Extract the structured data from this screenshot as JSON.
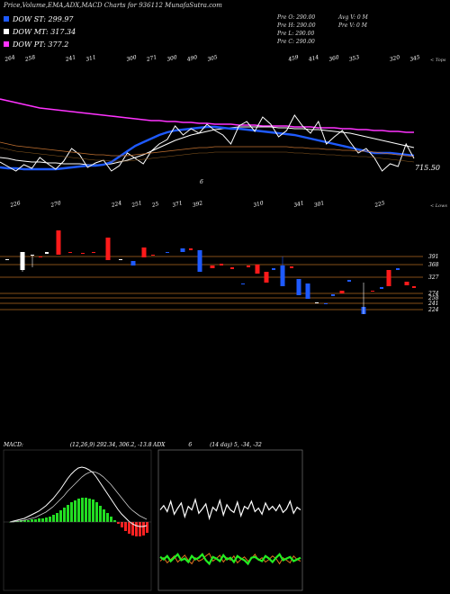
{
  "title": "Price,Volume,EMA,ADX,MACD Charts for 936112  MunafaSutra.com",
  "legend": [
    {
      "label": "DOW ST: 299.97",
      "color": "#1e5aff"
    },
    {
      "label": "DOW MT: 317.34",
      "color": "#ffffff"
    },
    {
      "label": "DOW PT: 377.2",
      "color": "#ff33ff"
    }
  ],
  "info": {
    "pre_o": "Pre  O: 290.00",
    "pre_h": "Pre  H: 290.00",
    "pre_l": "Pre  L: 290.00",
    "pre_c": "Pre  C: 290.00",
    "avg_v": "Avg V: 0  M",
    "pre_v": "Pre  V: 0  M"
  },
  "chart_data": [
    {
      "type": "line",
      "panel": "price",
      "top_labels": [
        "264",
        "258",
        "",
        "241",
        "311",
        "",
        "300",
        "271",
        "300",
        "490",
        "305",
        "",
        "",
        "",
        "459",
        "414",
        "360",
        "353",
        "",
        "320",
        "345"
      ],
      "bottom_labels": [
        "226",
        "",
        "270",
        "",
        "",
        "224",
        "251",
        "25",
        "371",
        "392",
        "",
        "",
        "310",
        "",
        "341",
        "301",
        "",
        "",
        "225",
        ""
      ],
      "right_top_label": "< Tops",
      "right_bottom_label": "< Lows",
      "last_price_label": "715.50",
      "marker_label": "6",
      "series": [
        {
          "name": "DOW PT",
          "color": "#ff33ff",
          "values": [
            110,
            112,
            114,
            116,
            118,
            120,
            121,
            122,
            123,
            124,
            125,
            126,
            127,
            128,
            129,
            130,
            131,
            132,
            133,
            134,
            134,
            135,
            135,
            136,
            136,
            137,
            137,
            138,
            138,
            138,
            139,
            139,
            139,
            140,
            140,
            140,
            140,
            141,
            141,
            141,
            142,
            142,
            142,
            143,
            143,
            144,
            144,
            145,
            145,
            146,
            146,
            147,
            147
          ]
        },
        {
          "name": "DOW MT",
          "color": "#ffffff",
          "values": [
            175,
            176,
            178,
            179,
            180,
            180,
            181,
            181,
            182,
            182,
            182,
            183,
            183,
            183,
            182,
            180,
            178,
            175,
            172,
            168,
            164,
            160,
            156,
            153,
            150,
            148,
            146,
            144,
            143,
            142,
            141,
            141,
            141,
            141,
            141,
            142,
            142,
            143,
            143,
            144,
            144,
            145,
            146,
            147,
            148,
            150,
            152,
            154,
            156,
            158,
            160,
            162,
            164
          ]
        },
        {
          "name": "DOW ST",
          "color": "#1e5aff",
          "values": [
            186,
            187,
            187,
            188,
            188,
            188,
            188,
            188,
            187,
            186,
            185,
            184,
            184,
            183,
            180,
            174,
            168,
            162,
            158,
            154,
            150,
            147,
            145,
            144,
            143,
            142,
            141,
            141,
            142,
            143,
            143,
            144,
            145,
            146,
            147,
            148,
            149,
            150,
            152,
            154,
            156,
            158,
            160,
            162,
            164,
            166,
            168,
            170,
            170,
            170,
            171,
            172,
            173
          ]
        },
        {
          "name": "Price",
          "color": "#ffffff",
          "values": [
            180,
            185,
            190,
            183,
            187,
            175,
            182,
            188,
            179,
            165,
            172,
            186,
            181,
            178,
            190,
            184,
            170,
            176,
            182,
            168,
            160,
            155,
            140,
            150,
            143,
            148,
            138,
            145,
            150,
            160,
            140,
            135,
            146,
            130,
            138,
            152,
            145,
            128,
            140,
            148,
            135,
            160,
            152,
            145,
            158,
            170,
            165,
            175,
            190,
            182,
            185,
            160,
            176
          ]
        },
        {
          "name": "Avg",
          "color": "#c07030",
          "values": [
            158,
            160,
            162,
            163,
            164,
            165,
            166,
            167,
            168,
            169,
            170,
            171,
            172,
            172,
            173,
            173,
            173,
            172,
            171,
            170,
            169,
            168,
            167,
            166,
            165,
            164,
            164,
            163,
            163,
            163,
            163,
            163,
            163,
            163,
            163,
            163,
            163,
            164,
            164,
            165,
            165,
            166,
            166,
            167,
            167,
            168,
            168,
            169,
            170,
            171,
            172,
            173,
            174
          ]
        }
      ]
    },
    {
      "type": "bar",
      "panel": "candles",
      "h_levels": [
        {
          "value": "391",
          "y": 285
        },
        {
          "value": "368",
          "y": 294
        },
        {
          "value": "327",
          "y": 308
        },
        {
          "value": "274",
          "y": 326
        },
        {
          "value": "258",
          "y": 331
        },
        {
          "value": "241",
          "y": 337
        },
        {
          "value": "224",
          "y": 344
        }
      ],
      "candles": [
        {
          "x": 8,
          "o": 288,
          "c": 288,
          "col": "w"
        },
        {
          "x": 25,
          "o": 280,
          "c": 300,
          "col": "w"
        },
        {
          "x": 36,
          "o": 283,
          "c": 283,
          "col": "w"
        },
        {
          "x": 45,
          "o": 285,
          "c": 285,
          "col": "r"
        },
        {
          "x": 52,
          "o": 280,
          "c": 282,
          "col": "w"
        },
        {
          "x": 65,
          "o": 256,
          "c": 283,
          "col": "r"
        },
        {
          "x": 78,
          "o": 280,
          "c": 280,
          "col": "r"
        },
        {
          "x": 92,
          "o": 281,
          "c": 281,
          "col": "r"
        },
        {
          "x": 104,
          "o": 280,
          "c": 280,
          "col": "r"
        },
        {
          "x": 120,
          "o": 264,
          "c": 289,
          "col": "r"
        },
        {
          "x": 134,
          "o": 288,
          "c": 288,
          "col": "w"
        },
        {
          "x": 148,
          "o": 290,
          "c": 295,
          "col": "b"
        },
        {
          "x": 160,
          "o": 275,
          "c": 286,
          "col": "r"
        },
        {
          "x": 170,
          "o": 283,
          "c": 283,
          "col": "r"
        },
        {
          "x": 186,
          "o": 280,
          "c": 280,
          "col": "b"
        },
        {
          "x": 203,
          "o": 276,
          "c": 280,
          "col": "b"
        },
        {
          "x": 212,
          "o": 276,
          "c": 278,
          "col": "r"
        },
        {
          "x": 222,
          "o": 278,
          "c": 302,
          "col": "b"
        },
        {
          "x": 236,
          "o": 295,
          "c": 298,
          "col": "r"
        },
        {
          "x": 246,
          "o": 293,
          "c": 295,
          "col": "r"
        },
        {
          "x": 258,
          "o": 297,
          "c": 299,
          "col": "r"
        },
        {
          "x": 270,
          "o": 315,
          "c": 315,
          "col": "b"
        },
        {
          "x": 276,
          "o": 295,
          "c": 297,
          "col": "r"
        },
        {
          "x": 286,
          "o": 294,
          "c": 304,
          "col": "r"
        },
        {
          "x": 296,
          "o": 302,
          "c": 314,
          "col": "r"
        },
        {
          "x": 304,
          "o": 298,
          "c": 300,
          "col": "b"
        },
        {
          "x": 314,
          "o": 295,
          "c": 318,
          "col": "b"
        },
        {
          "x": 324,
          "o": 296,
          "c": 298,
          "col": "r"
        },
        {
          "x": 332,
          "o": 310,
          "c": 328,
          "col": "b"
        },
        {
          "x": 342,
          "o": 315,
          "c": 332,
          "col": "b"
        },
        {
          "x": 352,
          "o": 336,
          "c": 336,
          "col": "w"
        },
        {
          "x": 362,
          "o": 337,
          "c": 337,
          "col": "b"
        },
        {
          "x": 370,
          "o": 327,
          "c": 329,
          "col": "b"
        },
        {
          "x": 380,
          "o": 323,
          "c": 326,
          "col": "r"
        },
        {
          "x": 388,
          "o": 311,
          "c": 313,
          "col": "b"
        },
        {
          "x": 404,
          "o": 341,
          "c": 349,
          "col": "b"
        },
        {
          "x": 414,
          "o": 323,
          "c": 324,
          "col": "r"
        },
        {
          "x": 424,
          "o": 319,
          "c": 321,
          "col": "b"
        },
        {
          "x": 432,
          "o": 300,
          "c": 318,
          "col": "r"
        },
        {
          "x": 442,
          "o": 298,
          "c": 300,
          "col": "b"
        },
        {
          "x": 452,
          "o": 313,
          "c": 317,
          "col": "r"
        },
        {
          "x": 460,
          "o": 318,
          "c": 320,
          "col": "r"
        }
      ]
    },
    {
      "type": "bar",
      "panel": "macd",
      "label": "MACD:",
      "params": "(12,26,9) 292.34,  306.2,  -13.8",
      "hist": [
        0,
        1,
        1,
        2,
        2,
        2,
        3,
        3,
        4,
        4,
        5,
        6,
        8,
        10,
        13,
        16,
        19,
        22,
        24,
        26,
        27,
        27,
        26,
        25,
        22,
        18,
        14,
        10,
        6,
        2,
        -2,
        -6,
        -10,
        -13,
        -15,
        -16,
        -16,
        -15,
        -12
      ],
      "macd_line": [
        0,
        1,
        2,
        3,
        4,
        6,
        8,
        10,
        12,
        15,
        18,
        22,
        26,
        31,
        36,
        42,
        48,
        53,
        57,
        60,
        61,
        60,
        58,
        55,
        50,
        44,
        38,
        32,
        26,
        20,
        14,
        9,
        5,
        1,
        -2,
        -4,
        -5,
        -5,
        -4
      ],
      "signal_line": [
        0,
        0,
        1,
        1,
        2,
        3,
        4,
        5,
        7,
        9,
        11,
        14,
        17,
        21,
        25,
        29,
        34,
        38,
        42,
        46,
        50,
        53,
        55,
        56,
        55,
        53,
        50,
        46,
        42,
        37,
        32,
        27,
        22,
        17,
        13,
        10,
        7,
        5,
        3
      ]
    },
    {
      "type": "line",
      "panel": "adx",
      "label": "ADX",
      "value": "6",
      "params": "(14  day) 5,  -34,  -32",
      "white": [
        70,
        65,
        72,
        60,
        75,
        68,
        62,
        78,
        66,
        70,
        58,
        74,
        69,
        63,
        80,
        67,
        71,
        59,
        76,
        64,
        70,
        73,
        61,
        77,
        66,
        69,
        60,
        72,
        68,
        75,
        62,
        70,
        66,
        71,
        64,
        73,
        69,
        60,
        74,
        67,
        70
      ],
      "green": [
        125,
        128,
        124,
        130,
        126,
        122,
        129,
        127,
        131,
        124,
        128,
        126,
        122,
        129,
        133,
        125,
        127,
        130,
        123,
        128,
        126,
        131,
        124,
        127,
        129,
        133,
        126,
        125,
        128,
        130,
        124,
        127,
        131,
        126,
        122,
        129,
        127,
        125,
        130,
        128,
        126
      ],
      "orange": [
        130,
        126,
        132,
        128,
        124,
        131,
        127,
        123,
        129,
        133,
        126,
        130,
        128,
        124,
        121,
        130,
        127,
        123,
        131,
        126,
        129,
        124,
        132,
        128,
        125,
        130,
        127,
        122,
        129,
        126,
        131,
        128,
        124,
        127,
        133,
        126,
        129,
        132,
        124,
        128,
        130
      ]
    }
  ]
}
